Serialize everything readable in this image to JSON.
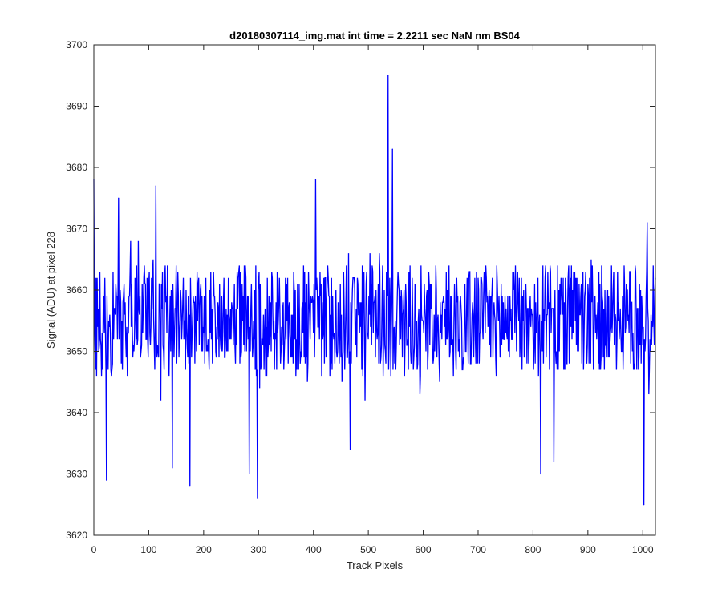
{
  "chart_data": {
    "type": "line",
    "title": "d20180307114_img.mat int time = 2.2211 sec  NaN nm BS04",
    "xlabel": "Track Pixels",
    "ylabel": "Signal (ADU) at pixel 228",
    "xlim": [
      0,
      1023
    ],
    "ylim": [
      3620,
      3700
    ],
    "xticks": [
      0,
      100,
      200,
      300,
      400,
      500,
      600,
      700,
      800,
      900,
      1000
    ],
    "yticks": [
      3620,
      3630,
      3640,
      3650,
      3660,
      3670,
      3680,
      3690,
      3700
    ],
    "grid": false,
    "legend": "none",
    "series": [
      {
        "color": "#0000ff",
        "x_start": 0,
        "x_step": 1,
        "count": 1024,
        "baseline": 3655,
        "spread": 9,
        "notable_points": [
          {
            "x": 0,
            "y": 3678
          },
          {
            "x": 23,
            "y": 3629
          },
          {
            "x": 45,
            "y": 3675
          },
          {
            "x": 113,
            "y": 3677
          },
          {
            "x": 143,
            "y": 3631
          },
          {
            "x": 175,
            "y": 3628
          },
          {
            "x": 283,
            "y": 3630
          },
          {
            "x": 298,
            "y": 3626
          },
          {
            "x": 404,
            "y": 3678
          },
          {
            "x": 467,
            "y": 3634
          },
          {
            "x": 536,
            "y": 3695
          },
          {
            "x": 544,
            "y": 3683
          },
          {
            "x": 814,
            "y": 3630
          },
          {
            "x": 838,
            "y": 3632
          },
          {
            "x": 1002,
            "y": 3625
          },
          {
            "x": 1008,
            "y": 3671
          }
        ]
      }
    ]
  },
  "colors": {
    "line": "#0000ff",
    "axis": "#262626",
    "background": "#ffffff"
  }
}
